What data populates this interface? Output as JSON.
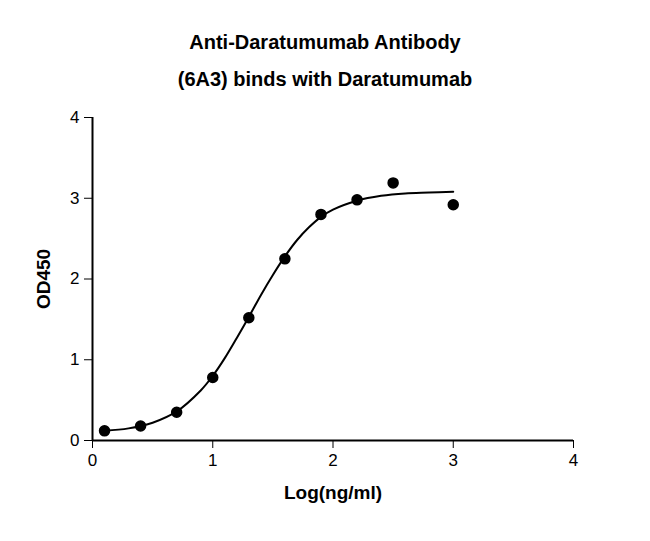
{
  "chart_data": {
    "type": "scatter",
    "title": "Anti-Daratumumab Antibody\n(6A3) binds with Daratumumab",
    "x_label": "Log(ng/ml)",
    "y_label": "OD450",
    "xlim": [
      0,
      4
    ],
    "xticks": [
      0,
      1,
      2,
      3,
      4
    ],
    "ylim": [
      0,
      4
    ],
    "yticks": [
      0,
      1,
      2,
      3,
      4
    ],
    "grid": false,
    "series": [
      {
        "type": "scatter",
        "marker": "circle",
        "color": "#000000",
        "x": [
          0.1,
          0.4,
          0.7,
          1.0,
          1.3,
          1.6,
          1.9,
          2.2,
          2.5,
          3.0
        ],
        "values": [
          0.12,
          0.18,
          0.35,
          0.78,
          1.52,
          2.25,
          2.8,
          2.98,
          3.19,
          2.92
        ]
      },
      {
        "type": "line",
        "line_style": "solid",
        "color": "#000000",
        "x": [
          0.1,
          0.3,
          0.5,
          0.7,
          0.9,
          1.0,
          1.1,
          1.2,
          1.3,
          1.4,
          1.5,
          1.6,
          1.7,
          1.8,
          1.9,
          2.0,
          2.2,
          2.4,
          2.6,
          2.8,
          3.0
        ],
        "values": [
          0.12,
          0.15,
          0.22,
          0.36,
          0.62,
          0.8,
          1.02,
          1.27,
          1.53,
          1.8,
          2.05,
          2.28,
          2.48,
          2.64,
          2.77,
          2.86,
          2.97,
          3.03,
          3.06,
          3.07,
          3.08
        ]
      }
    ]
  }
}
